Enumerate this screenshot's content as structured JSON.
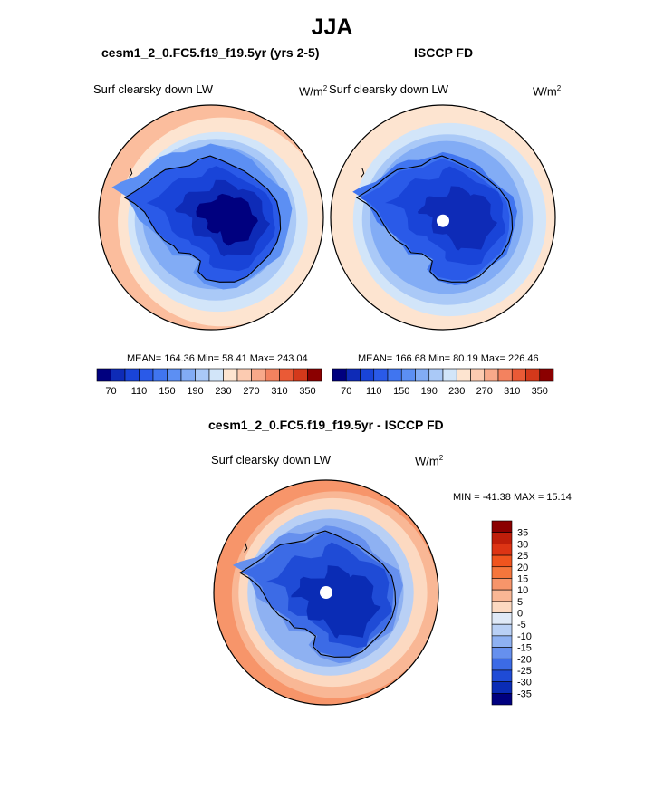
{
  "title": "JJA",
  "panels": {
    "model": {
      "header": "cesm1_2_0.FC5.f19_f19.5yr (yrs 2-5)",
      "variable": "Surf clearsky down LW",
      "units": "W/m",
      "units_sup": "2",
      "stats": "MEAN= 164.36  Min=  58.41  Max= 243.04"
    },
    "obs": {
      "header": "ISCCP FD",
      "variable": "Surf clearsky down LW",
      "units": "W/m",
      "units_sup": "2",
      "stats": "MEAN= 166.68  Min=  80.19  Max= 226.46"
    },
    "diff": {
      "header": "cesm1_2_0.FC5.f19_f19.5yr - ISCCP FD",
      "variable": "Surf clearsky down LW",
      "units": "W/m",
      "units_sup": "2",
      "minmax": "MIN = -41.38 MAX =  15.14"
    }
  },
  "chart_data": [
    {
      "type": "heatmap",
      "projection": "south-polar-stereographic",
      "title": "Surf clearsky down LW",
      "subtitle": "cesm1_2_0.FC5.f19_f19.5yr (yrs 2-5)",
      "units": "W/m2",
      "mean": 164.36,
      "min": 58.41,
      "max": 243.04,
      "colorbar": {
        "orientation": "horizontal",
        "levels": [
          70,
          90,
          110,
          130,
          150,
          170,
          190,
          210,
          230,
          250,
          270,
          290,
          310,
          330,
          350
        ],
        "tick_labels": [
          "70",
          "110",
          "150",
          "190",
          "230",
          "270",
          "310",
          "350"
        ],
        "colors": [
          "#00007f",
          "#0e2bb7",
          "#1944d8",
          "#2a5ae8",
          "#4075f0",
          "#5c8ff3",
          "#82acf5",
          "#aac9f7",
          "#d2e5f9",
          "#fde4d0",
          "#fccbb1",
          "#f8a98a",
          "#f3825f",
          "#ea5a36",
          "#d4391b",
          "#8b0000"
        ]
      }
    },
    {
      "type": "heatmap",
      "projection": "south-polar-stereographic",
      "title": "Surf clearsky down LW",
      "subtitle": "ISCCP FD",
      "units": "W/m2",
      "mean": 166.68,
      "min": 80.19,
      "max": 226.46,
      "colorbar": {
        "orientation": "horizontal",
        "levels": [
          70,
          90,
          110,
          130,
          150,
          170,
          190,
          210,
          230,
          250,
          270,
          290,
          310,
          330,
          350
        ],
        "tick_labels": [
          "70",
          "110",
          "150",
          "190",
          "230",
          "270",
          "310",
          "350"
        ],
        "colors": [
          "#00007f",
          "#0e2bb7",
          "#1944d8",
          "#2a5ae8",
          "#4075f0",
          "#5c8ff3",
          "#82acf5",
          "#aac9f7",
          "#d2e5f9",
          "#fde4d0",
          "#fccbb1",
          "#f8a98a",
          "#f3825f",
          "#ea5a36",
          "#d4391b",
          "#8b0000"
        ]
      }
    },
    {
      "type": "heatmap",
      "projection": "south-polar-stereographic",
      "title": "Surf clearsky down LW",
      "subtitle": "cesm1_2_0.FC5.f19_f19.5yr - ISCCP FD",
      "units": "W/m2",
      "min": -41.38,
      "max": 15.14,
      "colorbar": {
        "orientation": "vertical",
        "levels": [
          35,
          30,
          25,
          20,
          15,
          10,
          5,
          0,
          -5,
          -10,
          -15,
          -20,
          -25,
          -30,
          -35
        ],
        "tick_labels": [
          "35",
          "30",
          "25",
          "20",
          "15",
          "10",
          "5",
          "0",
          "-5",
          "-10",
          "-15",
          "-20",
          "-25",
          "-30",
          "-35"
        ],
        "colors_top_to_bottom": [
          "#8b0000",
          "#bf1e0a",
          "#dd3414",
          "#f0541e",
          "#f5763c",
          "#f7956a",
          "#f9b795",
          "#fcd9c1",
          "#dfe9f7",
          "#b9d0f5",
          "#8eb1f2",
          "#6690ee",
          "#3c6be6",
          "#1f4bd6",
          "#0a2cb5",
          "#00007f"
        ]
      }
    }
  ]
}
